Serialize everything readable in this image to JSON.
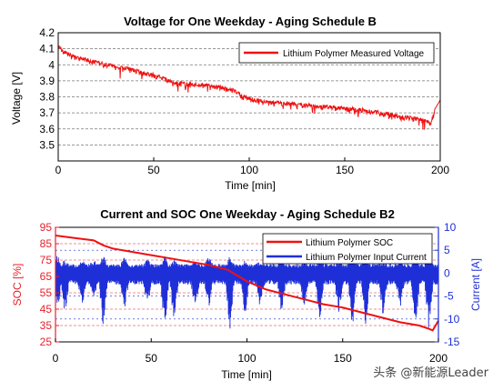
{
  "chart_data": [
    {
      "type": "line",
      "title": "Voltage for One Weekday - Aging Schedule B",
      "xlabel": "Time [min]",
      "ylabel": "Voltage [V]",
      "xlim": [
        0,
        200
      ],
      "ylim": [
        3.4,
        4.2
      ],
      "xticks": [
        0,
        50,
        100,
        150,
        200
      ],
      "yticks": [
        3.5,
        3.6,
        3.7,
        3.8,
        3.9,
        4.0,
        4.1,
        4.2
      ],
      "ytick_labels": [
        "3.5",
        "3.6",
        "3.7",
        "3.8",
        "3.9",
        "4",
        "4.1",
        "4.2"
      ],
      "grid": "horizontal dashed",
      "legend": "top-right",
      "series": [
        {
          "name": "Lithium Polymer Measured Voltage",
          "color": "#ee1111",
          "x": [
            0,
            2,
            5,
            10,
            20,
            30,
            40,
            50,
            60,
            70,
            80,
            90,
            100,
            110,
            120,
            130,
            140,
            150,
            160,
            170,
            180,
            190,
            195,
            197,
            200
          ],
          "y": [
            4.14,
            4.1,
            4.08,
            4.06,
            4.03,
            4.0,
            3.98,
            3.95,
            3.9,
            3.89,
            3.88,
            3.86,
            3.8,
            3.78,
            3.77,
            3.76,
            3.75,
            3.74,
            3.73,
            3.71,
            3.69,
            3.67,
            3.65,
            3.72,
            3.78
          ],
          "noise_amplitude": 0.04
        }
      ]
    },
    {
      "type": "line",
      "title": "Current and SOC One Weekday - Aging Schedule B2",
      "xlabel": "Time [min]",
      "ylabel_left": "SOC [%]",
      "ylabel_right": "Current [A]",
      "xlim": [
        0,
        200
      ],
      "ylim_left": [
        25,
        95
      ],
      "ylim_right": [
        -15,
        10
      ],
      "xticks": [
        0,
        50,
        100,
        150,
        200
      ],
      "yticks_left": [
        25,
        35,
        45,
        55,
        65,
        75,
        85,
        95
      ],
      "yticks_right": [
        -15,
        -10,
        -5,
        0,
        5,
        10
      ],
      "grid": "horizontal dashed",
      "legend": "top-right",
      "series": [
        {
          "name": "Lithium Polymer SOC",
          "axis": "left",
          "color": "#ee1111",
          "x": [
            0,
            10,
            20,
            25,
            30,
            40,
            50,
            60,
            70,
            80,
            90,
            100,
            110,
            120,
            130,
            140,
            150,
            160,
            170,
            180,
            190,
            195,
            197,
            200
          ],
          "y": [
            90,
            88.5,
            87,
            84,
            82,
            80,
            78,
            76,
            74,
            72,
            69,
            62,
            57,
            54,
            51,
            48,
            46,
            43,
            40,
            37,
            35,
            33,
            32,
            38
          ]
        },
        {
          "name": "Lithium Polymer Input Current",
          "axis": "right",
          "color": "#1f2fd8",
          "baseline_amplitude": [
            -2.5,
            2
          ],
          "x_range": [
            0,
            200
          ],
          "spikes": [
            {
              "x": 1,
              "min": -9,
              "max": 4
            },
            {
              "x": 5,
              "min": -9,
              "max": 3
            },
            {
              "x": 14,
              "min": -8,
              "max": 3
            },
            {
              "x": 20,
              "min": -5,
              "max": 3
            },
            {
              "x": 25,
              "min": -13,
              "max": 4
            },
            {
              "x": 36,
              "min": -8,
              "max": 4
            },
            {
              "x": 48,
              "min": -8,
              "max": 3
            },
            {
              "x": 57,
              "min": -13,
              "max": 4
            },
            {
              "x": 62,
              "min": -12,
              "max": 3
            },
            {
              "x": 73,
              "min": -9,
              "max": 3
            },
            {
              "x": 80,
              "min": -8,
              "max": 4
            },
            {
              "x": 91,
              "min": -13,
              "max": 4
            },
            {
              "x": 99,
              "min": -10,
              "max": 3
            },
            {
              "x": 107,
              "min": -8,
              "max": 3
            },
            {
              "x": 118,
              "min": -9,
              "max": 4
            },
            {
              "x": 130,
              "min": -8,
              "max": 3
            },
            {
              "x": 138,
              "min": -12,
              "max": 3
            },
            {
              "x": 148,
              "min": -9,
              "max": 3
            },
            {
              "x": 155,
              "min": -13,
              "max": 4
            },
            {
              "x": 162,
              "min": -12,
              "max": 4
            },
            {
              "x": 171,
              "min": -10,
              "max": 3
            },
            {
              "x": 180,
              "min": -8,
              "max": 3
            },
            {
              "x": 188,
              "min": -13,
              "max": 4
            },
            {
              "x": 195,
              "min": -13,
              "max": 6
            }
          ]
        }
      ]
    }
  ],
  "watermark": "头条 @新能源Leader"
}
